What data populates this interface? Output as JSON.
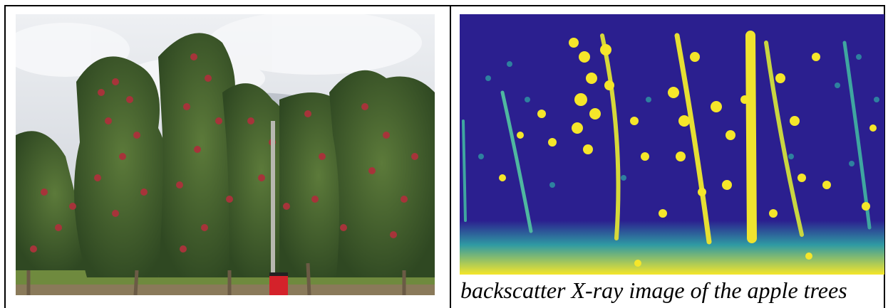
{
  "caption": "backscatter X-ray image of the apple trees",
  "colors": {
    "sky": "#d9dde3",
    "foliage": "#3f5a2c",
    "apple": "#a6343a",
    "xray_background": "#2b1f8f",
    "xray_signal": "#f5e62a",
    "xray_mid": "#2f9aa3",
    "post": "#d4222a"
  }
}
